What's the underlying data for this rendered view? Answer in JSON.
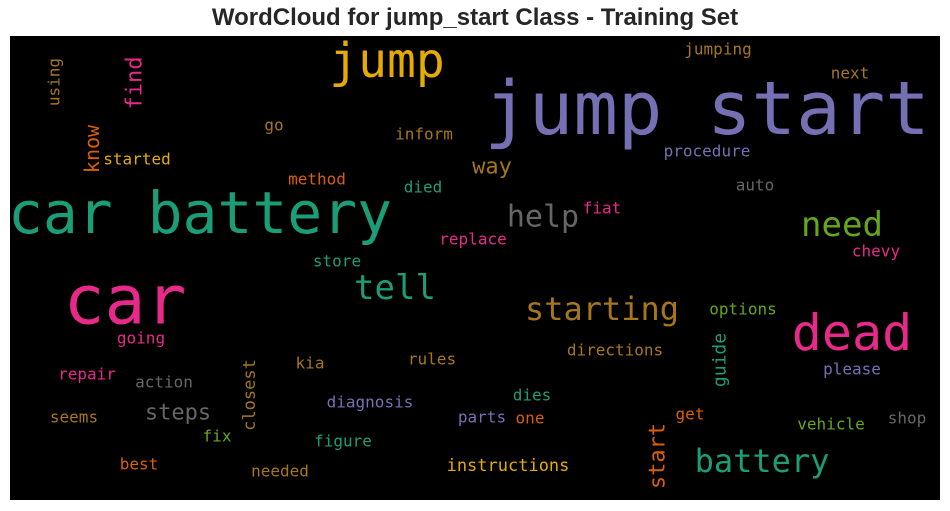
{
  "title": "WordCloud for jump_start Class - Training Set",
  "chart_data": {
    "type": "wordcloud",
    "background": "#000000",
    "words": [
      {
        "text": "jump start",
        "color": "#7570b3"
      },
      {
        "text": "car battery",
        "color": "#1b9e77"
      },
      {
        "text": "car",
        "color": "#e7298a"
      },
      {
        "text": "dead",
        "color": "#e7298a"
      },
      {
        "text": "jump",
        "color": "#e6ab02"
      },
      {
        "text": "battery",
        "color": "#1b9e77"
      },
      {
        "text": "tell",
        "color": "#1b9e77"
      },
      {
        "text": "need",
        "color": "#66a61e"
      },
      {
        "text": "starting",
        "color": "#a6761d"
      },
      {
        "text": "help",
        "color": "#666666"
      },
      {
        "text": "start",
        "color": "#d95f02"
      },
      {
        "text": "find",
        "color": "#e7298a"
      },
      {
        "text": "know",
        "color": "#d95f02"
      },
      {
        "text": "guide",
        "color": "#1b9e77"
      },
      {
        "text": "steps",
        "color": "#666666"
      },
      {
        "text": "way",
        "color": "#a6761d"
      },
      {
        "text": "closest",
        "color": "#a6761d"
      },
      {
        "text": "instructions",
        "color": "#e6ab02"
      },
      {
        "text": "procedure",
        "color": "#7570b3"
      },
      {
        "text": "directions",
        "color": "#a6761d"
      },
      {
        "text": "diagnosis",
        "color": "#7570b3"
      },
      {
        "text": "inform",
        "color": "#a6761d"
      },
      {
        "text": "method",
        "color": "#d95f02"
      },
      {
        "text": "replace",
        "color": "#e7298a"
      },
      {
        "text": "options",
        "color": "#66a61e"
      },
      {
        "text": "jumping",
        "color": "#a6761d"
      },
      {
        "text": "started",
        "color": "#e6ab02"
      },
      {
        "text": "using",
        "color": "#a6761d"
      },
      {
        "text": "chevy",
        "color": "#e7298a"
      },
      {
        "text": "please",
        "color": "#7570b3"
      },
      {
        "text": "vehicle",
        "color": "#66a61e"
      },
      {
        "text": "going",
        "color": "#e7298a"
      },
      {
        "text": "repair",
        "color": "#e7298a"
      },
      {
        "text": "action",
        "color": "#666666"
      },
      {
        "text": "rules",
        "color": "#a6761d"
      },
      {
        "text": "figure",
        "color": "#1b9e77"
      },
      {
        "text": "needed",
        "color": "#a6761d"
      },
      {
        "text": "seems",
        "color": "#a6761d"
      },
      {
        "text": "best",
        "color": "#d95f02"
      },
      {
        "text": "fiat",
        "color": "#e7298a"
      },
      {
        "text": "auto",
        "color": "#666666"
      },
      {
        "text": "died",
        "color": "#1b9e77"
      },
      {
        "text": "store",
        "color": "#1b9e77"
      },
      {
        "text": "go",
        "color": "#a6761d"
      },
      {
        "text": "next",
        "color": "#a6761d"
      },
      {
        "text": "kia",
        "color": "#a6761d"
      },
      {
        "text": "fix",
        "color": "#66a61e"
      },
      {
        "text": "parts",
        "color": "#7570b3"
      },
      {
        "text": "dies",
        "color": "#1b9e77"
      },
      {
        "text": "one",
        "color": "#d95f02"
      },
      {
        "text": "get",
        "color": "#d95f02"
      },
      {
        "text": "shop",
        "color": "#666666"
      }
    ]
  }
}
